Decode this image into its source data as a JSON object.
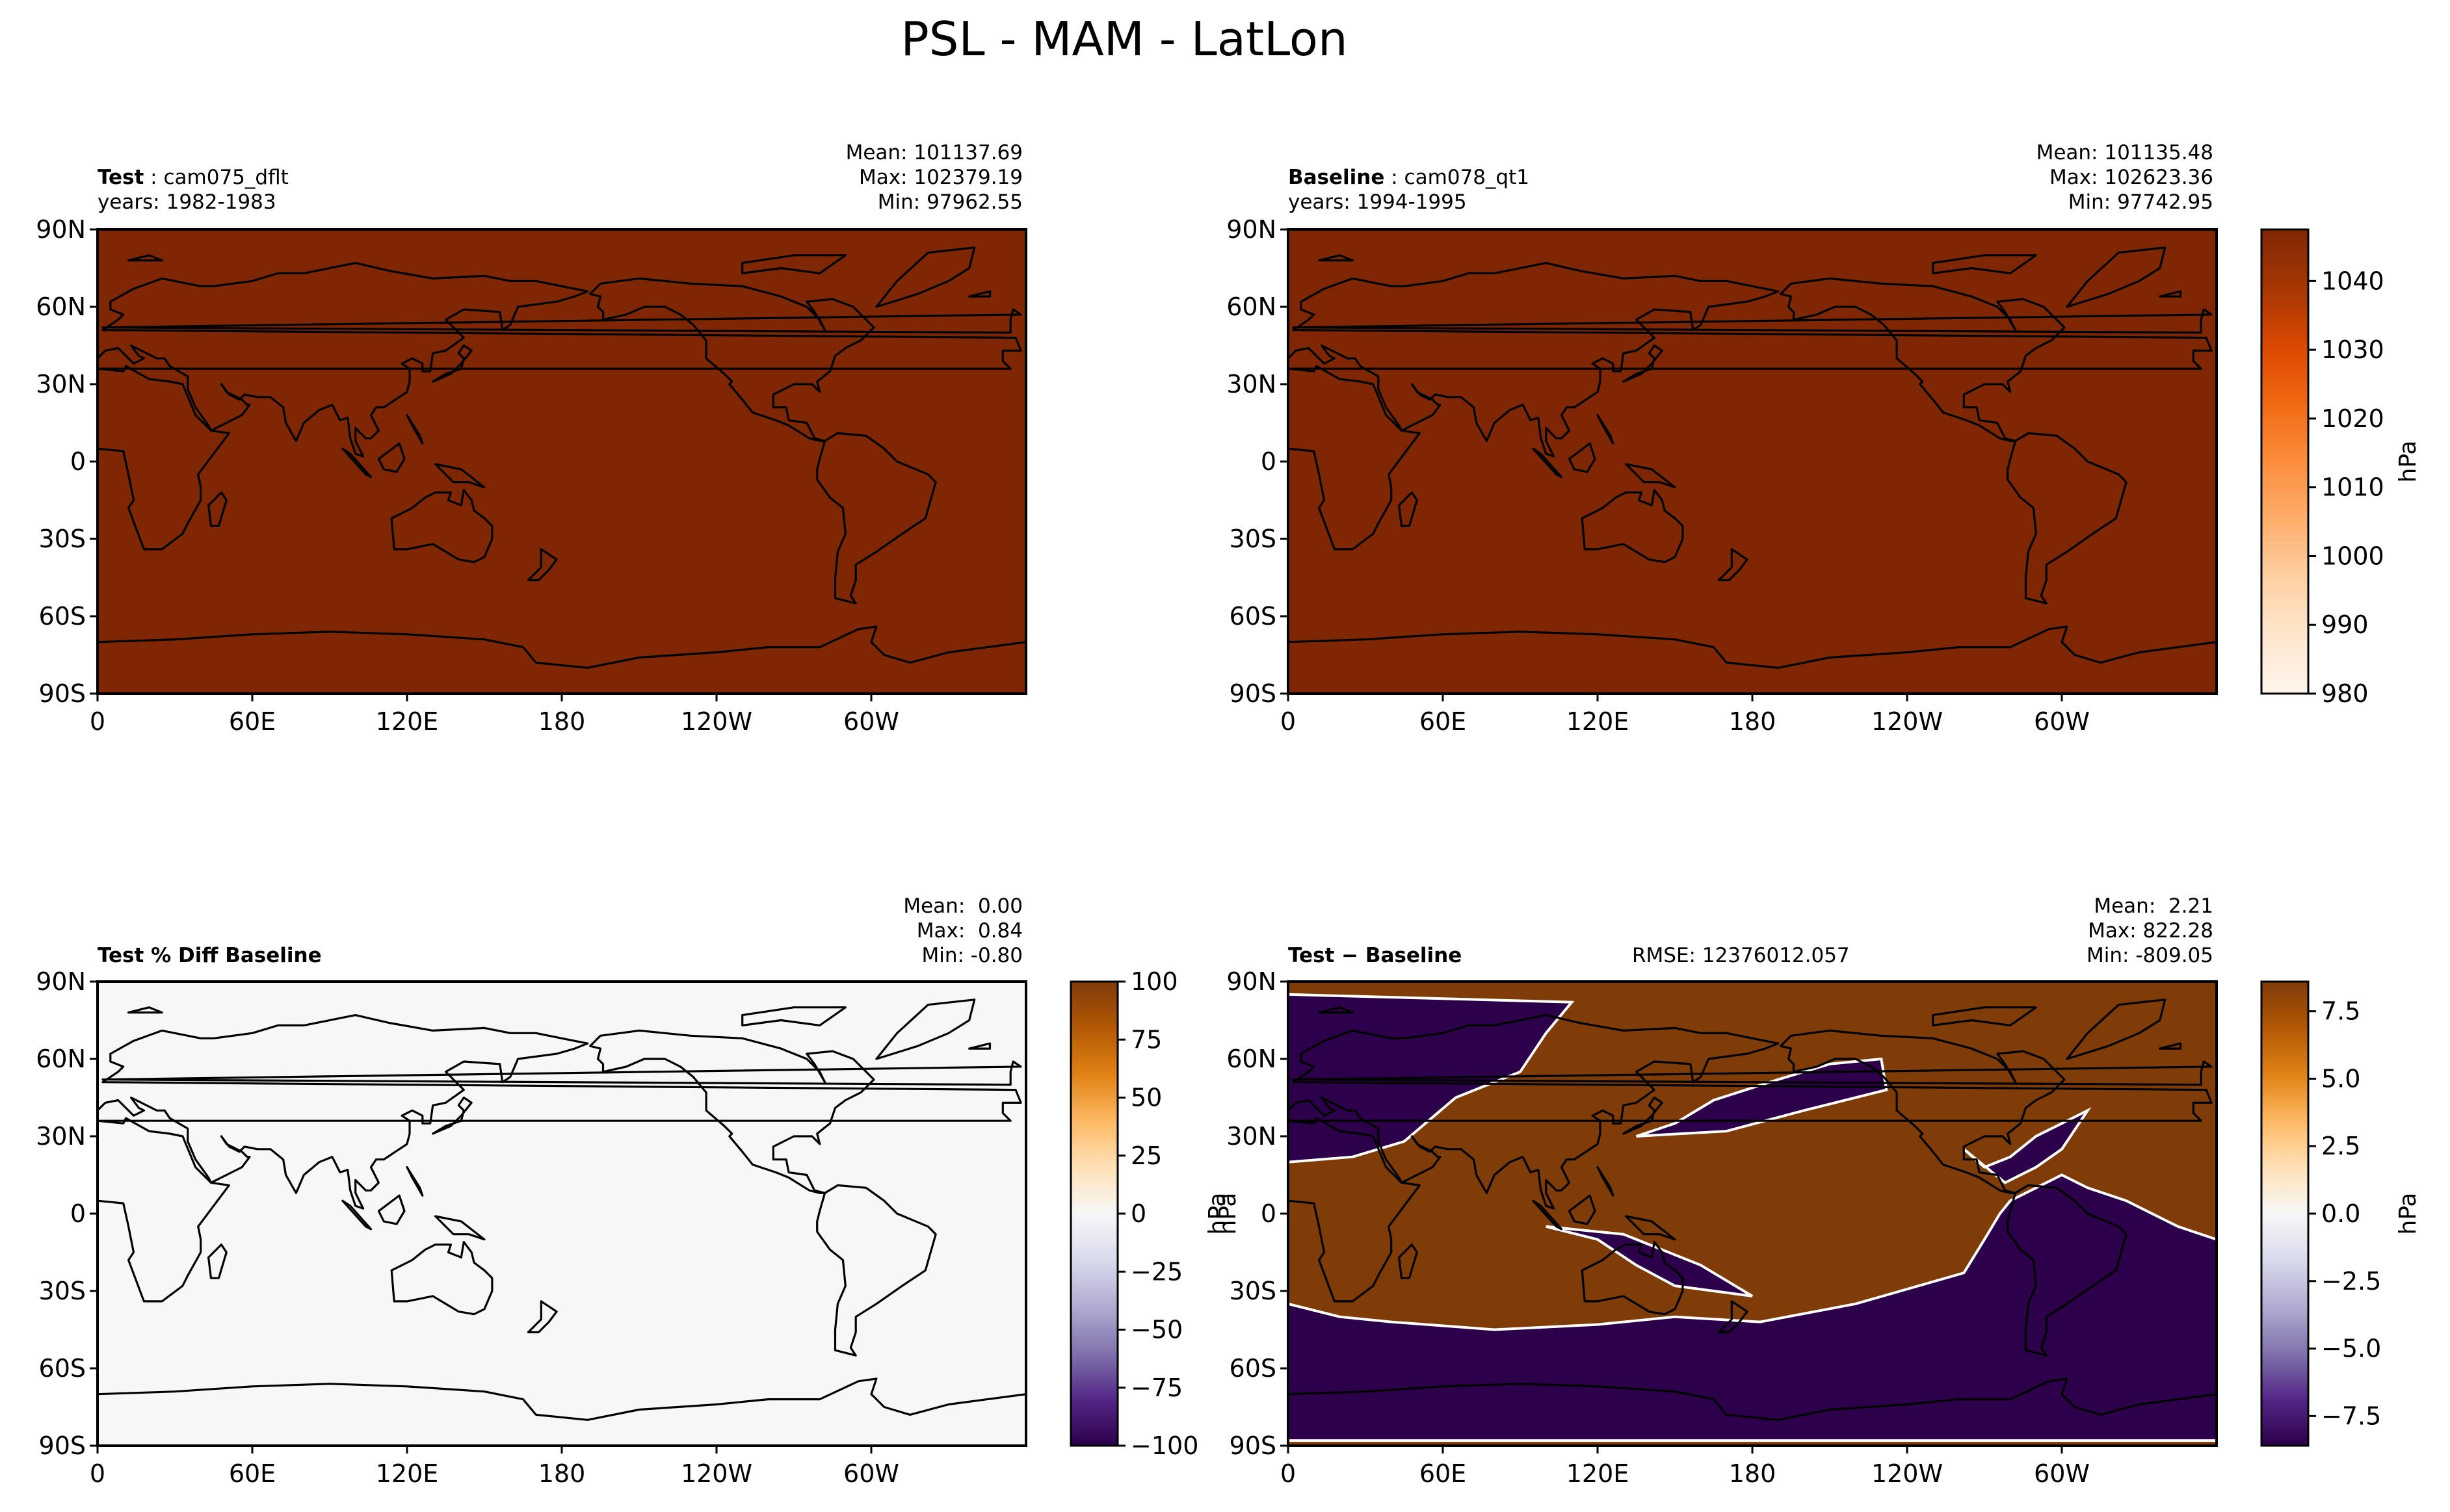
{
  "suptitle": "PSL - MAM - LatLon",
  "colors": {
    "oranges": [
      "#fff5eb",
      "#fee6ce",
      "#fdd0a2",
      "#fdae6b",
      "#fd8d3c",
      "#f16913",
      "#d94801",
      "#a63603",
      "#7f2704"
    ],
    "puor": [
      "#2d004b",
      "#542788",
      "#8073ac",
      "#b2abd2",
      "#d8daeb",
      "#f7f7f7",
      "#fee0b6",
      "#fdb863",
      "#e08214",
      "#b35806",
      "#7f3b08"
    ],
    "test_field": "#7f2704",
    "diff_field": "#f7f7f7",
    "ocean_negative": "#2d004b",
    "land_positive": "#7f3b08",
    "coast": "#000000"
  },
  "axes_common": {
    "lat_ticks": [
      "90N",
      "60N",
      "30N",
      "0",
      "30S",
      "60S",
      "90S"
    ],
    "lon_ticks": [
      "0",
      "60E",
      "120E",
      "180",
      "120W",
      "60W"
    ]
  },
  "panels": {
    "test": {
      "label_bold": "Test",
      "label_rest": " : cam075_dflt",
      "years": "years: 1982-1983",
      "stats": [
        "Mean: 101137.69",
        "Max: 102379.19",
        "Min: 97962.55"
      ]
    },
    "baseline": {
      "label_bold": "Baseline",
      "label_rest": " : cam078_qt1",
      "years": "years: 1994-1995",
      "stats": [
        "Mean: 101135.48",
        "Max: 102623.36",
        "Min: 97742.95"
      ]
    },
    "pctdiff": {
      "label_bold": "Test % Diff Baseline",
      "stats": [
        "Mean:  0.00",
        "Max:  0.84",
        "Min: -0.80"
      ]
    },
    "diff": {
      "label_bold": "Test − Baseline",
      "rmse": "RMSE: 12376012.057",
      "stats": [
        "Mean:  2.21",
        "Max: 822.28",
        "Min: -809.05"
      ]
    }
  },
  "colorbars": {
    "main": {
      "label": "hPa",
      "ticks": [
        "1040",
        "1030",
        "1020",
        "1010",
        "1000",
        "990",
        "980"
      ],
      "range": [
        980,
        1047.5
      ]
    },
    "pct": {
      "label": "hPa",
      "ticks": [
        "100",
        "75",
        "50",
        "25",
        "0",
        "−25",
        "−50",
        "−75",
        "−100"
      ],
      "range": [
        -100,
        100
      ]
    },
    "diff": {
      "label": "hPa",
      "ticks": [
        "7.5",
        "5.0",
        "2.5",
        "0.0",
        "−2.5",
        "−5.0",
        "−7.5"
      ],
      "range": [
        -8.6,
        8.6
      ]
    }
  },
  "chart_data": [
    {
      "type": "heatmap",
      "title": "Test : cam075_dflt",
      "subtitle": "years: 1982-1983",
      "variable": "PSL",
      "season": "MAM",
      "units": "hPa",
      "xlim": [
        0,
        360
      ],
      "ylim": [
        -90,
        90
      ],
      "xticks": [
        "0",
        "60E",
        "120E",
        "180",
        "120W",
        "60W"
      ],
      "yticks": [
        "90N",
        "60N",
        "30N",
        "0",
        "30S",
        "60S",
        "90S"
      ],
      "stats": {
        "mean": 101137.69,
        "max": 102379.19,
        "min": 97962.55
      },
      "colorbar": {
        "range": [
          980,
          1047.5
        ],
        "label": "hPa"
      }
    },
    {
      "type": "heatmap",
      "title": "Baseline : cam078_qt1",
      "subtitle": "years: 1994-1995",
      "variable": "PSL",
      "season": "MAM",
      "units": "hPa",
      "xlim": [
        0,
        360
      ],
      "ylim": [
        -90,
        90
      ],
      "xticks": [
        "0",
        "60E",
        "120E",
        "180",
        "120W",
        "60W"
      ],
      "yticks": [
        "90N",
        "60N",
        "30N",
        "0",
        "30S",
        "60S",
        "90S"
      ],
      "stats": {
        "mean": 101135.48,
        "max": 102623.36,
        "min": 97742.95
      },
      "colorbar": {
        "range": [
          980,
          1047.5
        ],
        "label": "hPa"
      }
    },
    {
      "type": "heatmap",
      "title": "Test % Diff Baseline",
      "xlim": [
        0,
        360
      ],
      "ylim": [
        -90,
        90
      ],
      "xticks": [
        "0",
        "60E",
        "120E",
        "180",
        "120W",
        "60W"
      ],
      "yticks": [
        "90N",
        "60N",
        "30N",
        "0",
        "30S",
        "60S",
        "90S"
      ],
      "stats": {
        "mean": 0.0,
        "max": 0.84,
        "min": -0.8
      },
      "colorbar": {
        "range": [
          -100,
          100
        ],
        "label": "hPa"
      }
    },
    {
      "type": "heatmap",
      "title": "Test − Baseline",
      "annotation": "RMSE: 12376012.057",
      "xlim": [
        0,
        360
      ],
      "ylim": [
        -90,
        90
      ],
      "xticks": [
        "0",
        "60E",
        "120E",
        "180",
        "120W",
        "60W"
      ],
      "yticks": [
        "90N",
        "60N",
        "30N",
        "0",
        "30S",
        "60S",
        "90S"
      ],
      "stats": {
        "mean": 2.21,
        "max": 822.28,
        "min": -809.05
      },
      "colorbar": {
        "range": [
          -8.6,
          8.6
        ],
        "label": "hPa"
      }
    }
  ]
}
